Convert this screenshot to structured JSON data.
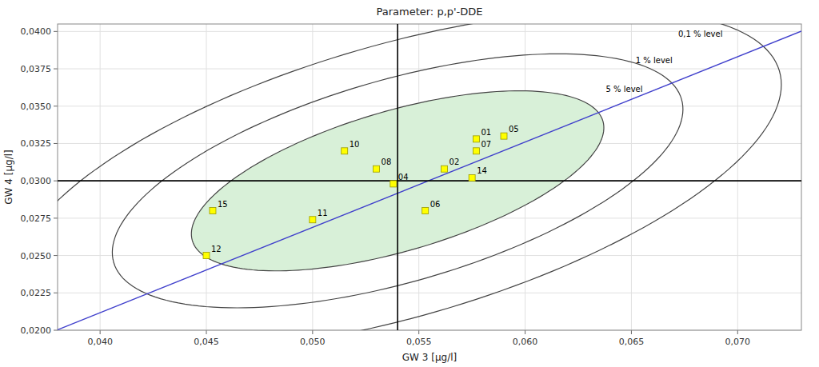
{
  "chart_data": {
    "type": "scatter",
    "title": "Parameter: p,p'-DDE",
    "x_label": "GW 3 [µg/l]",
    "y_label": "GW 4 [µg/l]",
    "xlim": [
      0.038,
      0.073
    ],
    "ylim": [
      0.02,
      0.0405
    ],
    "xticks": [
      {
        "value": 0.04,
        "label": "0,040"
      },
      {
        "value": 0.045,
        "label": "0,045"
      },
      {
        "value": 0.05,
        "label": "0,050"
      },
      {
        "value": 0.055,
        "label": "0,055"
      },
      {
        "value": 0.06,
        "label": "0,060"
      },
      {
        "value": 0.065,
        "label": "0,065"
      },
      {
        "value": 0.07,
        "label": "0,070"
      }
    ],
    "yticks": [
      {
        "value": 0.02,
        "label": "0,0200"
      },
      {
        "value": 0.0225,
        "label": "0,0225"
      },
      {
        "value": 0.025,
        "label": "0,0250"
      },
      {
        "value": 0.0275,
        "label": "0,0275"
      },
      {
        "value": 0.03,
        "label": "0,0300"
      },
      {
        "value": 0.0325,
        "label": "0,0325"
      },
      {
        "value": 0.035,
        "label": "0,0350"
      },
      {
        "value": 0.0375,
        "label": "0,0375"
      },
      {
        "value": 0.04,
        "label": "0,0400"
      }
    ],
    "grid": true,
    "marker": "square",
    "color": "#ffff00",
    "point_labels": [
      "10",
      "08",
      "04",
      "02",
      "14",
      "06",
      "01",
      "05",
      "07",
      "11",
      "15",
      "12"
    ],
    "x": [
      0.0515,
      0.053,
      0.0538,
      0.0562,
      0.0575,
      0.0553,
      0.0577,
      0.059,
      0.0577,
      0.05,
      0.0453,
      0.045
    ],
    "values": [
      0.032,
      0.0308,
      0.0298,
      0.0308,
      0.0302,
      0.028,
      0.0328,
      0.033,
      0.032,
      0.0274,
      0.028,
      0.025
    ],
    "mean_x": 0.054,
    "mean_y": 0.03,
    "ellipse_center_x": 0.054,
    "ellipse_center_y": 0.03,
    "ellipse_angle": 25,
    "ellipses": [
      {
        "width": 0.021,
        "height": 0.009,
        "color": "#d8f0d8"
      },
      {
        "width": 0.029,
        "height": 0.013
      },
      {
        "width": 0.039,
        "height": 0.0175
      }
    ],
    "annotations": [
      {
        "text": "5 % level",
        "x": 0.0638,
        "y": 0.03595
      },
      {
        "text": "1 % level",
        "x": 0.0652,
        "y": 0.0379
      },
      {
        "text": "0,1 % level",
        "x": 0.0672,
        "y": 0.03965
      }
    ],
    "diagonal_line": {
      "x": [
        0.038,
        0.073
      ],
      "y": [
        0.02003,
        0.04002
      ],
      "color": "#4040cc"
    }
  }
}
